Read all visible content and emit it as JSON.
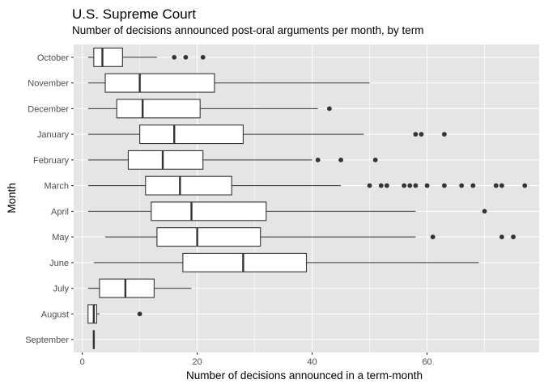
{
  "chart_data": {
    "type": "boxplot",
    "orientation": "horizontal",
    "title": "U.S. Supreme Court",
    "subtitle": "Number of decisions announced post-oral arguments per month, by term",
    "xlabel": "Number of decisions announced in a term-month",
    "ylabel": "Month",
    "xlim": [
      -1.5,
      79.5
    ],
    "xticks": [
      0,
      20,
      40,
      60,
      80
    ],
    "categories": [
      "October",
      "November",
      "December",
      "January",
      "February",
      "March",
      "April",
      "May",
      "June",
      "July",
      "August",
      "September"
    ],
    "boxes": [
      {
        "category": "October",
        "whisker_low": 1,
        "q1": 2,
        "median": 3.5,
        "q3": 7,
        "whisker_high": 13,
        "outliers": [
          16,
          18,
          21
        ]
      },
      {
        "category": "November",
        "whisker_low": 1,
        "q1": 4,
        "median": 10,
        "q3": 23,
        "whisker_high": 50,
        "outliers": []
      },
      {
        "category": "December",
        "whisker_low": 1,
        "q1": 6,
        "median": 10.5,
        "q3": 20.5,
        "whisker_high": 41,
        "outliers": [
          43
        ]
      },
      {
        "category": "January",
        "whisker_low": 1,
        "q1": 10,
        "median": 16,
        "q3": 28,
        "whisker_high": 49,
        "outliers": [
          58,
          59,
          63
        ]
      },
      {
        "category": "February",
        "whisker_low": 1,
        "q1": 8,
        "median": 14,
        "q3": 21,
        "whisker_high": 40,
        "outliers": [
          41,
          45,
          51
        ]
      },
      {
        "category": "March",
        "whisker_low": 1,
        "q1": 11,
        "median": 17,
        "q3": 26,
        "whisker_high": 45,
        "outliers": [
          50,
          52,
          53,
          56,
          57,
          58,
          60,
          63,
          66,
          68,
          72,
          73,
          77
        ]
      },
      {
        "category": "April",
        "whisker_low": 1,
        "q1": 12,
        "median": 19,
        "q3": 32,
        "whisker_high": 58,
        "outliers": [
          70
        ]
      },
      {
        "category": "May",
        "whisker_low": 4,
        "q1": 13,
        "median": 20,
        "q3": 31,
        "whisker_high": 58,
        "outliers": [
          61,
          73,
          75
        ]
      },
      {
        "category": "June",
        "whisker_low": 2,
        "q1": 17.5,
        "median": 28,
        "q3": 39,
        "whisker_high": 69,
        "outliers": []
      },
      {
        "category": "July",
        "whisker_low": 1,
        "q1": 3,
        "median": 7.5,
        "q3": 12.5,
        "whisker_high": 19,
        "outliers": []
      },
      {
        "category": "August",
        "whisker_low": 1,
        "q1": 1,
        "median": 2,
        "q3": 2.5,
        "whisker_high": 3,
        "outliers": [
          10
        ]
      },
      {
        "category": "September",
        "whisker_low": 2,
        "q1": 2,
        "median": 2,
        "q3": 2,
        "whisker_high": 2,
        "outliers": []
      }
    ],
    "grid": true,
    "colors": {
      "panel_background": "#e5e5e5",
      "grid_major": "#ffffff",
      "box_fill": "#ffffff",
      "box_stroke": "#333333",
      "outlier": "#333333",
      "tick_label": "#4d4d4d"
    }
  }
}
